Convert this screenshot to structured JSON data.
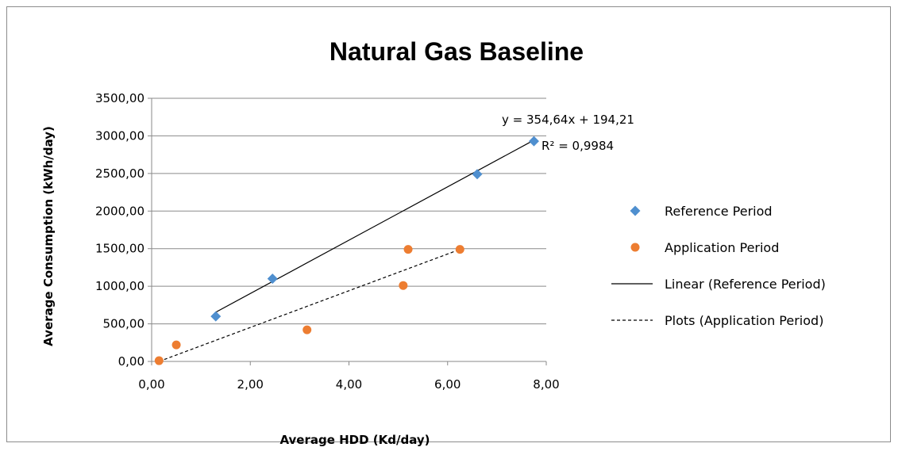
{
  "chart_data": {
    "type": "scatter",
    "title": "Natural Gas Baseline",
    "xlabel": "Average HDD  (Kd/day)",
    "ylabel": "Average Consumption  (kWh/day)",
    "xlim": [
      0,
      8
    ],
    "ylim": [
      0,
      3500
    ],
    "x_ticks": [
      "0,00",
      "2,00",
      "4,00",
      "6,00",
      "8,00"
    ],
    "y_ticks": [
      "0,00",
      "500,00",
      "1000,00",
      "1500,00",
      "2000,00",
      "2500,00",
      "3000,00",
      "3500,00"
    ],
    "grid": "horizontal",
    "legend_position": "right",
    "series": [
      {
        "name": "Reference Period",
        "marker": "diamond",
        "color": "#4F8FCF",
        "points": [
          [
            1.3,
            600
          ],
          [
            2.45,
            1100
          ],
          [
            6.6,
            2490
          ],
          [
            7.75,
            2930
          ]
        ]
      },
      {
        "name": "Application Period",
        "marker": "circle",
        "color": "#ED7D31",
        "points": [
          [
            0.15,
            10
          ],
          [
            0.5,
            220
          ],
          [
            3.15,
            420
          ],
          [
            5.1,
            1010
          ],
          [
            5.2,
            1490
          ],
          [
            6.25,
            1490
          ]
        ]
      }
    ],
    "lines": [
      {
        "name": "Linear (Reference Period)",
        "style": "solid",
        "color": "#000000",
        "points": [
          [
            1.3,
            655
          ],
          [
            7.75,
            2943
          ]
        ]
      },
      {
        "name": "Plots (Application Period)",
        "style": "dashed",
        "color": "#000000",
        "points": [
          [
            0.15,
            0
          ],
          [
            6.25,
            1490
          ]
        ]
      }
    ],
    "annotations": [
      "y = 354,64x + 194,21",
      "R² = 0,9984"
    ]
  }
}
